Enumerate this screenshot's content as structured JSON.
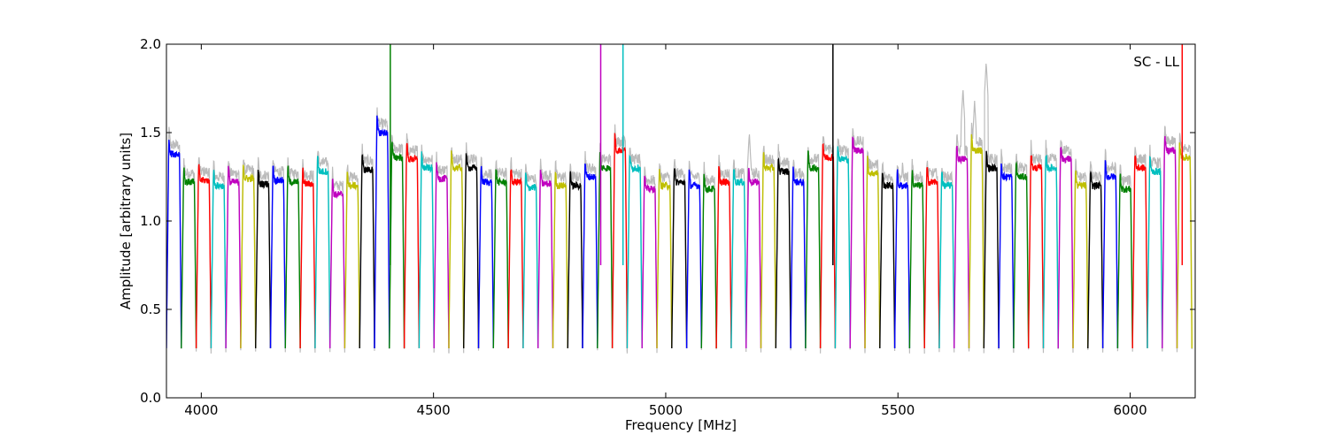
{
  "chart_data": {
    "type": "line",
    "title": "",
    "annotation": "SC - LL",
    "xlabel": "Frequency [MHz]",
    "ylabel": "Amplitude [arbitrary units]",
    "xlim": [
      3925,
      6140
    ],
    "ylim": [
      0.0,
      2.0
    ],
    "xticks": [
      4000,
      4500,
      5000,
      5500,
      6000
    ],
    "xtick_labels": [
      "4000",
      "4500",
      "5000",
      "5500",
      "6000"
    ],
    "yticks": [
      0.0,
      0.5,
      1.0,
      1.5,
      2.0
    ],
    "ytick_labels": [
      "0.0",
      "0.5",
      "1.0",
      "1.5",
      "2.0"
    ],
    "grid": false,
    "legend": "none",
    "band_width_mhz": 32,
    "band_starts_mhz": [
      3925,
      3957,
      3989,
      4021,
      4053,
      4085,
      4117,
      4149,
      4181,
      4213,
      4245,
      4277,
      4309,
      4341,
      4373,
      4405,
      4437,
      4469,
      4501,
      4533,
      4565,
      4597,
      4629,
      4661,
      4693,
      4725,
      4757,
      4789,
      4821,
      4853,
      4885,
      4917,
      4949,
      4981,
      5013,
      5045,
      5077,
      5109,
      5141,
      5173,
      5205,
      5237,
      5269,
      5301,
      5333,
      5365,
      5397,
      5429,
      5461,
      5493,
      5525,
      5557,
      5589,
      5621,
      5653,
      5685,
      5717,
      5749,
      5781,
      5813,
      5845,
      5877,
      5909,
      5941,
      5973,
      6005,
      6037,
      6069,
      6101
    ],
    "band_peaks": [
      1.38,
      1.22,
      1.23,
      1.2,
      1.22,
      1.24,
      1.21,
      1.23,
      1.22,
      1.21,
      1.28,
      1.15,
      1.2,
      1.29,
      1.5,
      1.36,
      1.35,
      1.3,
      1.24,
      1.3,
      1.3,
      1.22,
      1.22,
      1.22,
      1.19,
      1.21,
      1.2,
      1.2,
      1.25,
      1.3,
      1.4,
      1.3,
      1.18,
      1.2,
      1.22,
      1.2,
      1.18,
      1.22,
      1.22,
      1.22,
      1.3,
      1.28,
      1.22,
      1.3,
      1.36,
      1.35,
      1.4,
      1.27,
      1.2,
      1.2,
      1.2,
      1.22,
      1.2,
      1.35,
      1.4,
      1.3,
      1.25,
      1.25,
      1.3,
      1.3,
      1.35,
      1.2,
      1.2,
      1.25,
      1.18,
      1.3,
      1.28,
      1.4,
      1.36
    ],
    "band_minimum": 0.28,
    "color_cycle": [
      "#0000ff",
      "#008000",
      "#ff0000",
      "#00bfbf",
      "#bf00bf",
      "#bfbf00",
      "#000000"
    ],
    "raw_color": "#bbbbbb",
    "spikes": [
      {
        "x": 4407,
        "y": 2.0,
        "color": "#008000"
      },
      {
        "x": 4860,
        "y": 2.0,
        "color": "#bf00bf"
      },
      {
        "x": 4908,
        "y": 2.0,
        "color": "#00bfbf"
      },
      {
        "x": 5360,
        "y": 2.0,
        "color": "#000000"
      },
      {
        "x": 6112,
        "y": 2.0,
        "color": "#ff0000"
      }
    ],
    "raw_bumps": [
      {
        "x": 5640,
        "y": 1.75
      },
      {
        "x": 5665,
        "y": 1.68
      },
      {
        "x": 5690,
        "y": 1.9
      },
      {
        "x": 5180,
        "y": 1.5
      },
      {
        "x": 5510,
        "y": 1.34
      }
    ]
  }
}
